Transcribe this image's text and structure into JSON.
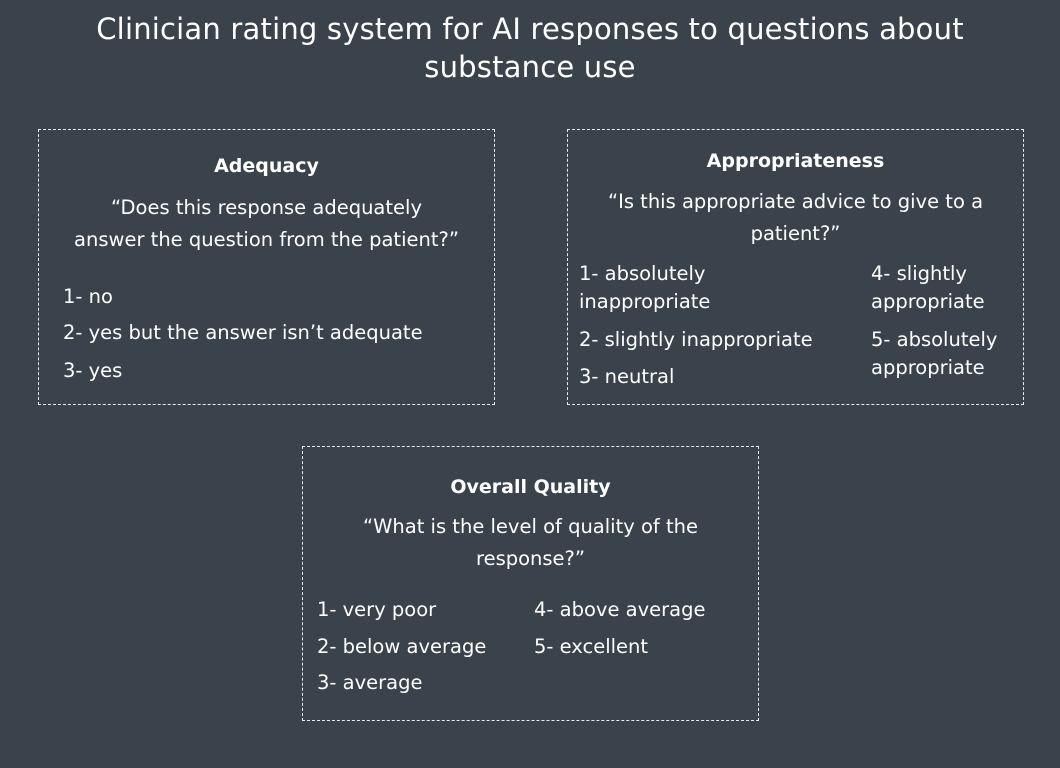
{
  "title_line1": "Clinician rating system for AI responses to questions about",
  "title_line2": "substance use",
  "adequacy": {
    "title": "Adequacy",
    "question_line1": "“Does this response adequately",
    "question_line2": "answer the question from the patient?”",
    "options": [
      "1- no",
      "2- yes but the answer isn’t adequate",
      "3- yes"
    ]
  },
  "appropriateness": {
    "title": "Appropriateness",
    "question_line1": "“Is this appropriate advice to give to a",
    "question_line2": "patient?”",
    "option1_line1": "1- absolutely",
    "option1_line2": "inappropriate",
    "option2": "2- slightly inappropriate",
    "option3": "3- neutral",
    "option4_line1": "4- slightly",
    "option4_line2": "appropriate",
    "option5_line1": "5- absolutely",
    "option5_line2": "appropriate"
  },
  "overall_quality": {
    "title": "Overall Quality",
    "question_line1": "“What is the level of quality of the",
    "question_line2": "response?”",
    "options": [
      "1- very poor",
      "2- below average",
      "3- average",
      "4- above average",
      "5- excellent"
    ]
  }
}
